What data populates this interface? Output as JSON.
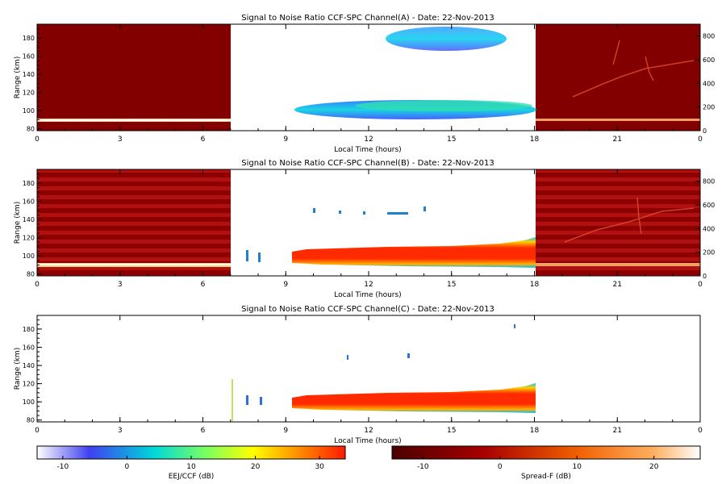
{
  "chart_data": [
    {
      "type": "heatmap",
      "title": "Signal to Noise Ratio CCF-SPC Channel(A) - Date: 22-Nov-2013",
      "xlabel": "Local Time (hours)",
      "ylabel": "Range (km)",
      "xlim": [
        0,
        24
      ],
      "ylim": [
        78,
        195
      ],
      "x_ticks": [
        "0",
        "3",
        "6",
        "9",
        "12",
        "15",
        "18",
        "21",
        "0"
      ],
      "y_ticks": [
        "80",
        "100",
        "120",
        "140",
        "160",
        "180"
      ],
      "y2lim": [
        0,
        900
      ],
      "y2_ticks": [
        "0",
        "200",
        "400",
        "600",
        "800"
      ],
      "regions": [
        {
          "name": "Spread-F",
          "x": [
            0,
            7
          ],
          "scale": "spread_f"
        },
        {
          "name": "EEJ/CCF",
          "x": [
            7,
            18
          ],
          "scale": "eej"
        },
        {
          "name": "Spread-F",
          "x": [
            18,
            24
          ],
          "scale": "spread_f"
        }
      ],
      "features": [
        {
          "scale": "spread_f",
          "x": [
            0,
            7
          ],
          "y": 92,
          "value": 22
        },
        {
          "scale": "spread_f",
          "x": [
            18,
            24
          ],
          "y": 92,
          "value": 20
        },
        {
          "scale": "eej",
          "x": [
            9.3,
            18
          ],
          "y": [
            96,
            118
          ],
          "value": -2
        },
        {
          "scale": "eej",
          "x": [
            12.8,
            17.5
          ],
          "y": [
            163,
            192
          ],
          "value": -3
        }
      ]
    },
    {
      "type": "heatmap",
      "title": "Signal to Noise Ratio CCF-SPC Channel(B) - Date: 22-Nov-2013",
      "xlabel": "Local Time (hours)",
      "ylabel": "Range (km)",
      "xlim": [
        0,
        24
      ],
      "ylim": [
        78,
        195
      ],
      "x_ticks": [
        "0",
        "3",
        "6",
        "9",
        "12",
        "15",
        "18",
        "21",
        "0"
      ],
      "y_ticks": [
        "80",
        "100",
        "120",
        "140",
        "160",
        "180"
      ],
      "y2lim": [
        0,
        900
      ],
      "y2_ticks": [
        "0",
        "200",
        "400",
        "600",
        "800"
      ],
      "regions": [
        {
          "name": "Spread-F",
          "x": [
            0,
            7
          ],
          "scale": "spread_f"
        },
        {
          "name": "EEJ/CCF",
          "x": [
            7,
            18
          ],
          "scale": "eej"
        },
        {
          "name": "Spread-F",
          "x": [
            18,
            24
          ],
          "scale": "spread_f"
        }
      ],
      "features": [
        {
          "scale": "spread_f",
          "x": [
            0,
            7
          ],
          "y": 92,
          "value": 22
        },
        {
          "scale": "spread_f",
          "x": [
            18,
            24
          ],
          "y": 92,
          "value": 20
        },
        {
          "scale": "eej",
          "x": [
            9.3,
            18
          ],
          "y": [
            94,
            118
          ],
          "value": 30
        }
      ]
    },
    {
      "type": "heatmap",
      "title": "Signal to Noise Ratio CCF-SPC Channel(C) - Date: 22-Nov-2013",
      "xlabel": "Local Time (hours)",
      "ylabel": "Range (km)",
      "xlim": [
        0,
        24
      ],
      "ylim": [
        78,
        195
      ],
      "x_ticks": [
        "0",
        "3",
        "6",
        "9",
        "12",
        "15",
        "18",
        "21",
        "0"
      ],
      "y_ticks": [
        "80",
        "100",
        "120",
        "140",
        "160",
        "180"
      ],
      "features": [
        {
          "scale": "eej",
          "x": [
            9.3,
            18
          ],
          "y": [
            94,
            118
          ],
          "value": 30
        }
      ]
    }
  ],
  "colorbars": [
    {
      "name": "eej",
      "label": "EEJ/CCF (dB)",
      "range": [
        -14,
        34
      ],
      "ticks": [
        "-10",
        "0",
        "10",
        "20",
        "30"
      ],
      "colors": [
        "#ffffff",
        "#3a3ae8",
        "#00d8d8",
        "#ffff00",
        "#ff2000"
      ]
    },
    {
      "name": "spread_f",
      "label": "Spread-F (dB)",
      "range": [
        -14,
        26
      ],
      "ticks": [
        "-10",
        "0",
        "10",
        "20"
      ],
      "colors": [
        "#5a0000",
        "#a00000",
        "#e05000",
        "#ffa020",
        "#ffffff"
      ]
    }
  ]
}
